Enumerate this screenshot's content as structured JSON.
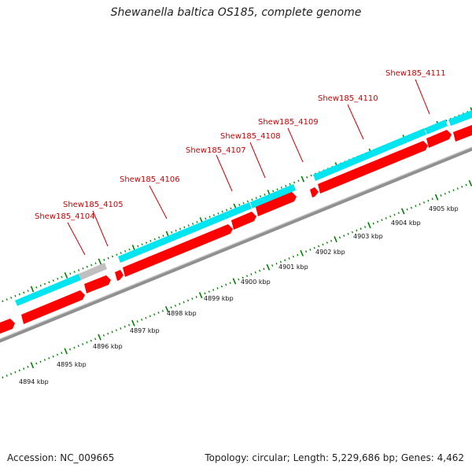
{
  "title": "Shewanella baltica OS185, complete genome",
  "accession": "Accession: NC_009665",
  "summary": "Topology: circular; Length: 5,229,686 bp; Genes: 4,462",
  "colors": {
    "forward_strand": "#00e5f0",
    "reverse_strand": "#ff0000",
    "pseudo_gene": "#c0c0c0",
    "gene_label": "#cc0000",
    "tick_mark": "#008000"
  },
  "gene_labels": [
    "Shew185_4104",
    "Shew185_4105",
    "Shew185_4106",
    "Shew185_4107",
    "Shew185_4108",
    "Shew185_4109",
    "Shew185_4110",
    "Shew185_4111"
  ],
  "scale_labels": [
    "4894 kbp",
    "4895 kbp",
    "4896 kbp",
    "4897 kbp",
    "4898 kbp",
    "4899 kbp",
    "4900 kbp",
    "4901 kbp",
    "4902 kbp",
    "4903 kbp",
    "4904 kbp",
    "4905 kbp"
  ]
}
